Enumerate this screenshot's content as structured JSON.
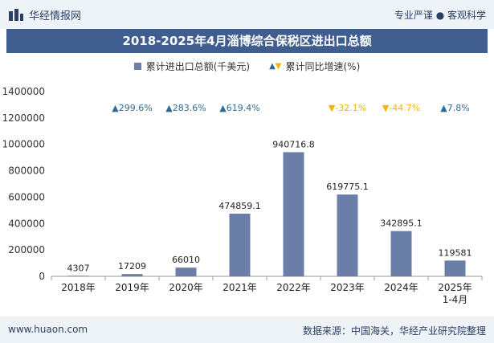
{
  "header": {
    "brand_name": "华经情报网",
    "tagline": "专业严谨 ● 客观科学",
    "title": "2018-2025年4月淄博综合保税区进出口总额"
  },
  "legend": {
    "bar_label": "累计进出口总额(千美元)",
    "growth_label": "累计同比增速(%)"
  },
  "footer": {
    "website": "www.huaon.com",
    "source": "数据来源：中国海关，华经产业研究院整理"
  },
  "colors": {
    "bar": "#6b7ea8",
    "up": "#2e6b96",
    "down": "#f5b400",
    "title_bg": "#3f5d8e"
  },
  "chart_data": {
    "type": "bar",
    "categories": [
      "2018年",
      "2019年",
      "2020年",
      "2021年",
      "2022年",
      "2023年",
      "2024年",
      "2025年\n1-4月"
    ],
    "series": [
      {
        "name": "累计进出口总额(千美元)",
        "values": [
          4307,
          17209,
          66010,
          474859.1,
          940716.8,
          619775.1,
          342895.1,
          119581
        ],
        "labels": [
          "4307",
          "17209",
          "66010",
          "474859.1",
          "940716.8",
          "619775.1",
          "342895.1",
          "119581"
        ]
      },
      {
        "name": "累计同比增速(%)",
        "values": [
          null,
          299.6,
          283.6,
          619.4,
          null,
          -32.1,
          -44.7,
          7.8
        ],
        "labels": [
          "",
          "299.6%",
          "283.6%",
          "619.4%",
          "",
          "-32.1%",
          "-44.7%",
          "7.8%"
        ]
      }
    ],
    "ylim": [
      0,
      1400000
    ],
    "yticks": [
      "0",
      "200000",
      "400000",
      "600000",
      "800000",
      "1000000",
      "1200000",
      "1400000"
    ],
    "grid": false
  }
}
